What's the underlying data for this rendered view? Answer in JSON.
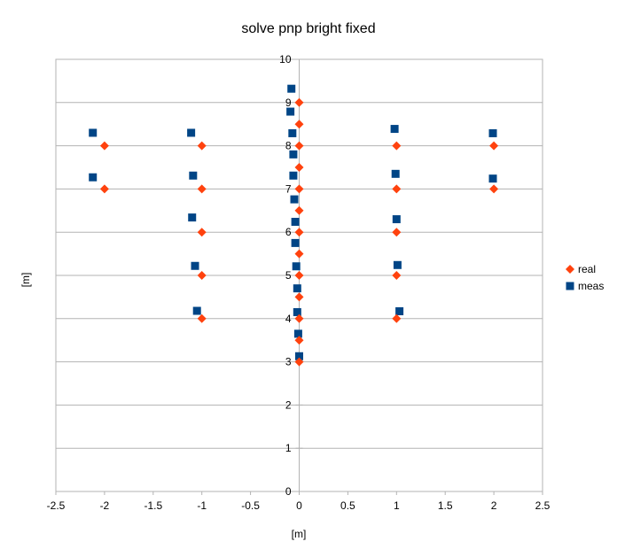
{
  "chart_data": {
    "type": "scatter",
    "title": "solve pnp bright fixed",
    "xlabel": "[m]",
    "ylabel": "[m]",
    "xlim": [
      -2.5,
      2.5
    ],
    "ylim": [
      0,
      10
    ],
    "xticks": [
      -2.5,
      -2,
      -1.5,
      -1,
      -0.5,
      0,
      0.5,
      1,
      1.5,
      2,
      2.5
    ],
    "xtick_labels": [
      "-2.5",
      "-2",
      "-1.5",
      "-1",
      "-0.5",
      "0",
      "0.5",
      "1",
      "1.5",
      "2",
      "2.5"
    ],
    "yticks": [
      0,
      1,
      2,
      3,
      4,
      5,
      6,
      7,
      8,
      9,
      10
    ],
    "ytick_labels": [
      "0",
      "1",
      "2",
      "3",
      "4",
      "5",
      "6",
      "7",
      "8",
      "9",
      "10"
    ],
    "grid": "horizontal",
    "legend_position": "right",
    "series": [
      {
        "name": "real",
        "marker": "diamond",
        "color": "#ff420e",
        "points": [
          [
            -2,
            8
          ],
          [
            -2,
            7
          ],
          [
            -1,
            8
          ],
          [
            -1,
            7
          ],
          [
            -1,
            6
          ],
          [
            -1,
            5
          ],
          [
            -1,
            4
          ],
          [
            0,
            9
          ],
          [
            0,
            8.5
          ],
          [
            0,
            8
          ],
          [
            0,
            7.5
          ],
          [
            0,
            7
          ],
          [
            0,
            6.5
          ],
          [
            0,
            6
          ],
          [
            0,
            5.5
          ],
          [
            0,
            5
          ],
          [
            0,
            4.5
          ],
          [
            0,
            4
          ],
          [
            0,
            3.5
          ],
          [
            0,
            3
          ],
          [
            1,
            8
          ],
          [
            1,
            7
          ],
          [
            1,
            6
          ],
          [
            1,
            5
          ],
          [
            1,
            4
          ],
          [
            2,
            8
          ],
          [
            2,
            7
          ]
        ]
      },
      {
        "name": "meas",
        "marker": "square",
        "color": "#004586",
        "points": [
          [
            -2.12,
            8.3
          ],
          [
            -2.12,
            7.27
          ],
          [
            -1.11,
            8.3
          ],
          [
            -1.09,
            7.31
          ],
          [
            -1.1,
            6.34
          ],
          [
            -1.07,
            5.22
          ],
          [
            -1.05,
            4.18
          ],
          [
            -0.08,
            9.32
          ],
          [
            -0.09,
            8.79
          ],
          [
            -0.07,
            8.29
          ],
          [
            -0.06,
            7.8
          ],
          [
            -0.06,
            7.31
          ],
          [
            -0.05,
            6.76
          ],
          [
            -0.04,
            6.24
          ],
          [
            -0.04,
            5.75
          ],
          [
            -0.03,
            5.21
          ],
          [
            -0.02,
            4.7
          ],
          [
            -0.02,
            4.15
          ],
          [
            -0.01,
            3.65
          ],
          [
            0.0,
            3.13
          ],
          [
            0.98,
            8.39
          ],
          [
            0.99,
            7.35
          ],
          [
            1.0,
            6.3
          ],
          [
            1.01,
            5.24
          ],
          [
            1.03,
            4.17
          ],
          [
            1.99,
            8.29
          ],
          [
            1.99,
            7.24
          ]
        ]
      }
    ]
  }
}
